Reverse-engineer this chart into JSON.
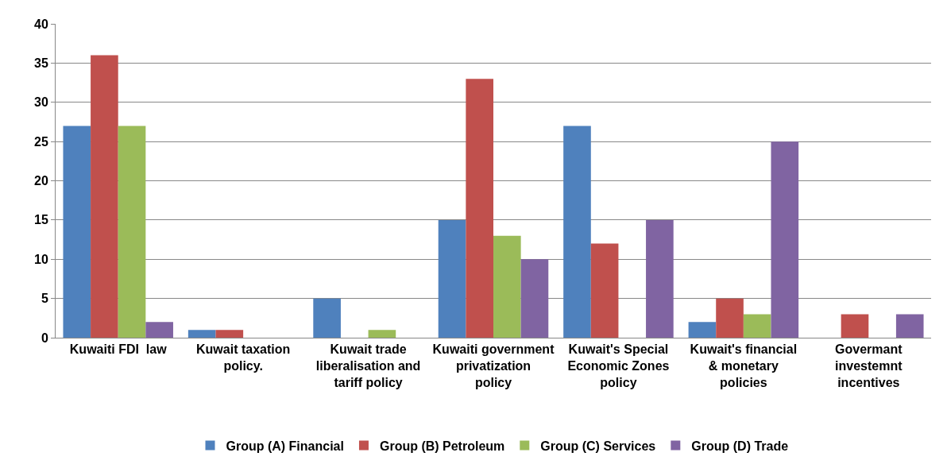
{
  "chart_data": {
    "type": "bar",
    "categories": [
      "Kuwaiti FDI  law",
      "Kuwait taxation policy.",
      "Kuwait trade liberalisation and tariff policy",
      "Kuwaiti government privatization policy",
      "Kuwait's Special Economic Zones policy",
      "Kuwait's financial & monetary policies",
      "Govermant investemnt incentives"
    ],
    "series": [
      {
        "name": "Group (A) Financial",
        "color": "#4f81bd",
        "values": [
          27,
          1,
          5,
          15,
          27,
          2,
          0
        ]
      },
      {
        "name": "Group (B) Petroleum",
        "color": "#c0504d",
        "values": [
          36,
          1,
          0,
          33,
          12,
          5,
          3
        ]
      },
      {
        "name": "Group (C) Services",
        "color": "#9bbb59",
        "values": [
          27,
          0,
          1,
          13,
          0,
          3,
          0
        ]
      },
      {
        "name": "Group (D) Trade",
        "color": "#8064a2",
        "values": [
          2,
          0,
          0,
          10,
          15,
          25,
          3
        ]
      }
    ],
    "ylim": [
      0,
      40
    ],
    "yticks": [
      0,
      5,
      10,
      15,
      20,
      25,
      30,
      35,
      40
    ],
    "grid": "y",
    "legend": "bottom"
  }
}
